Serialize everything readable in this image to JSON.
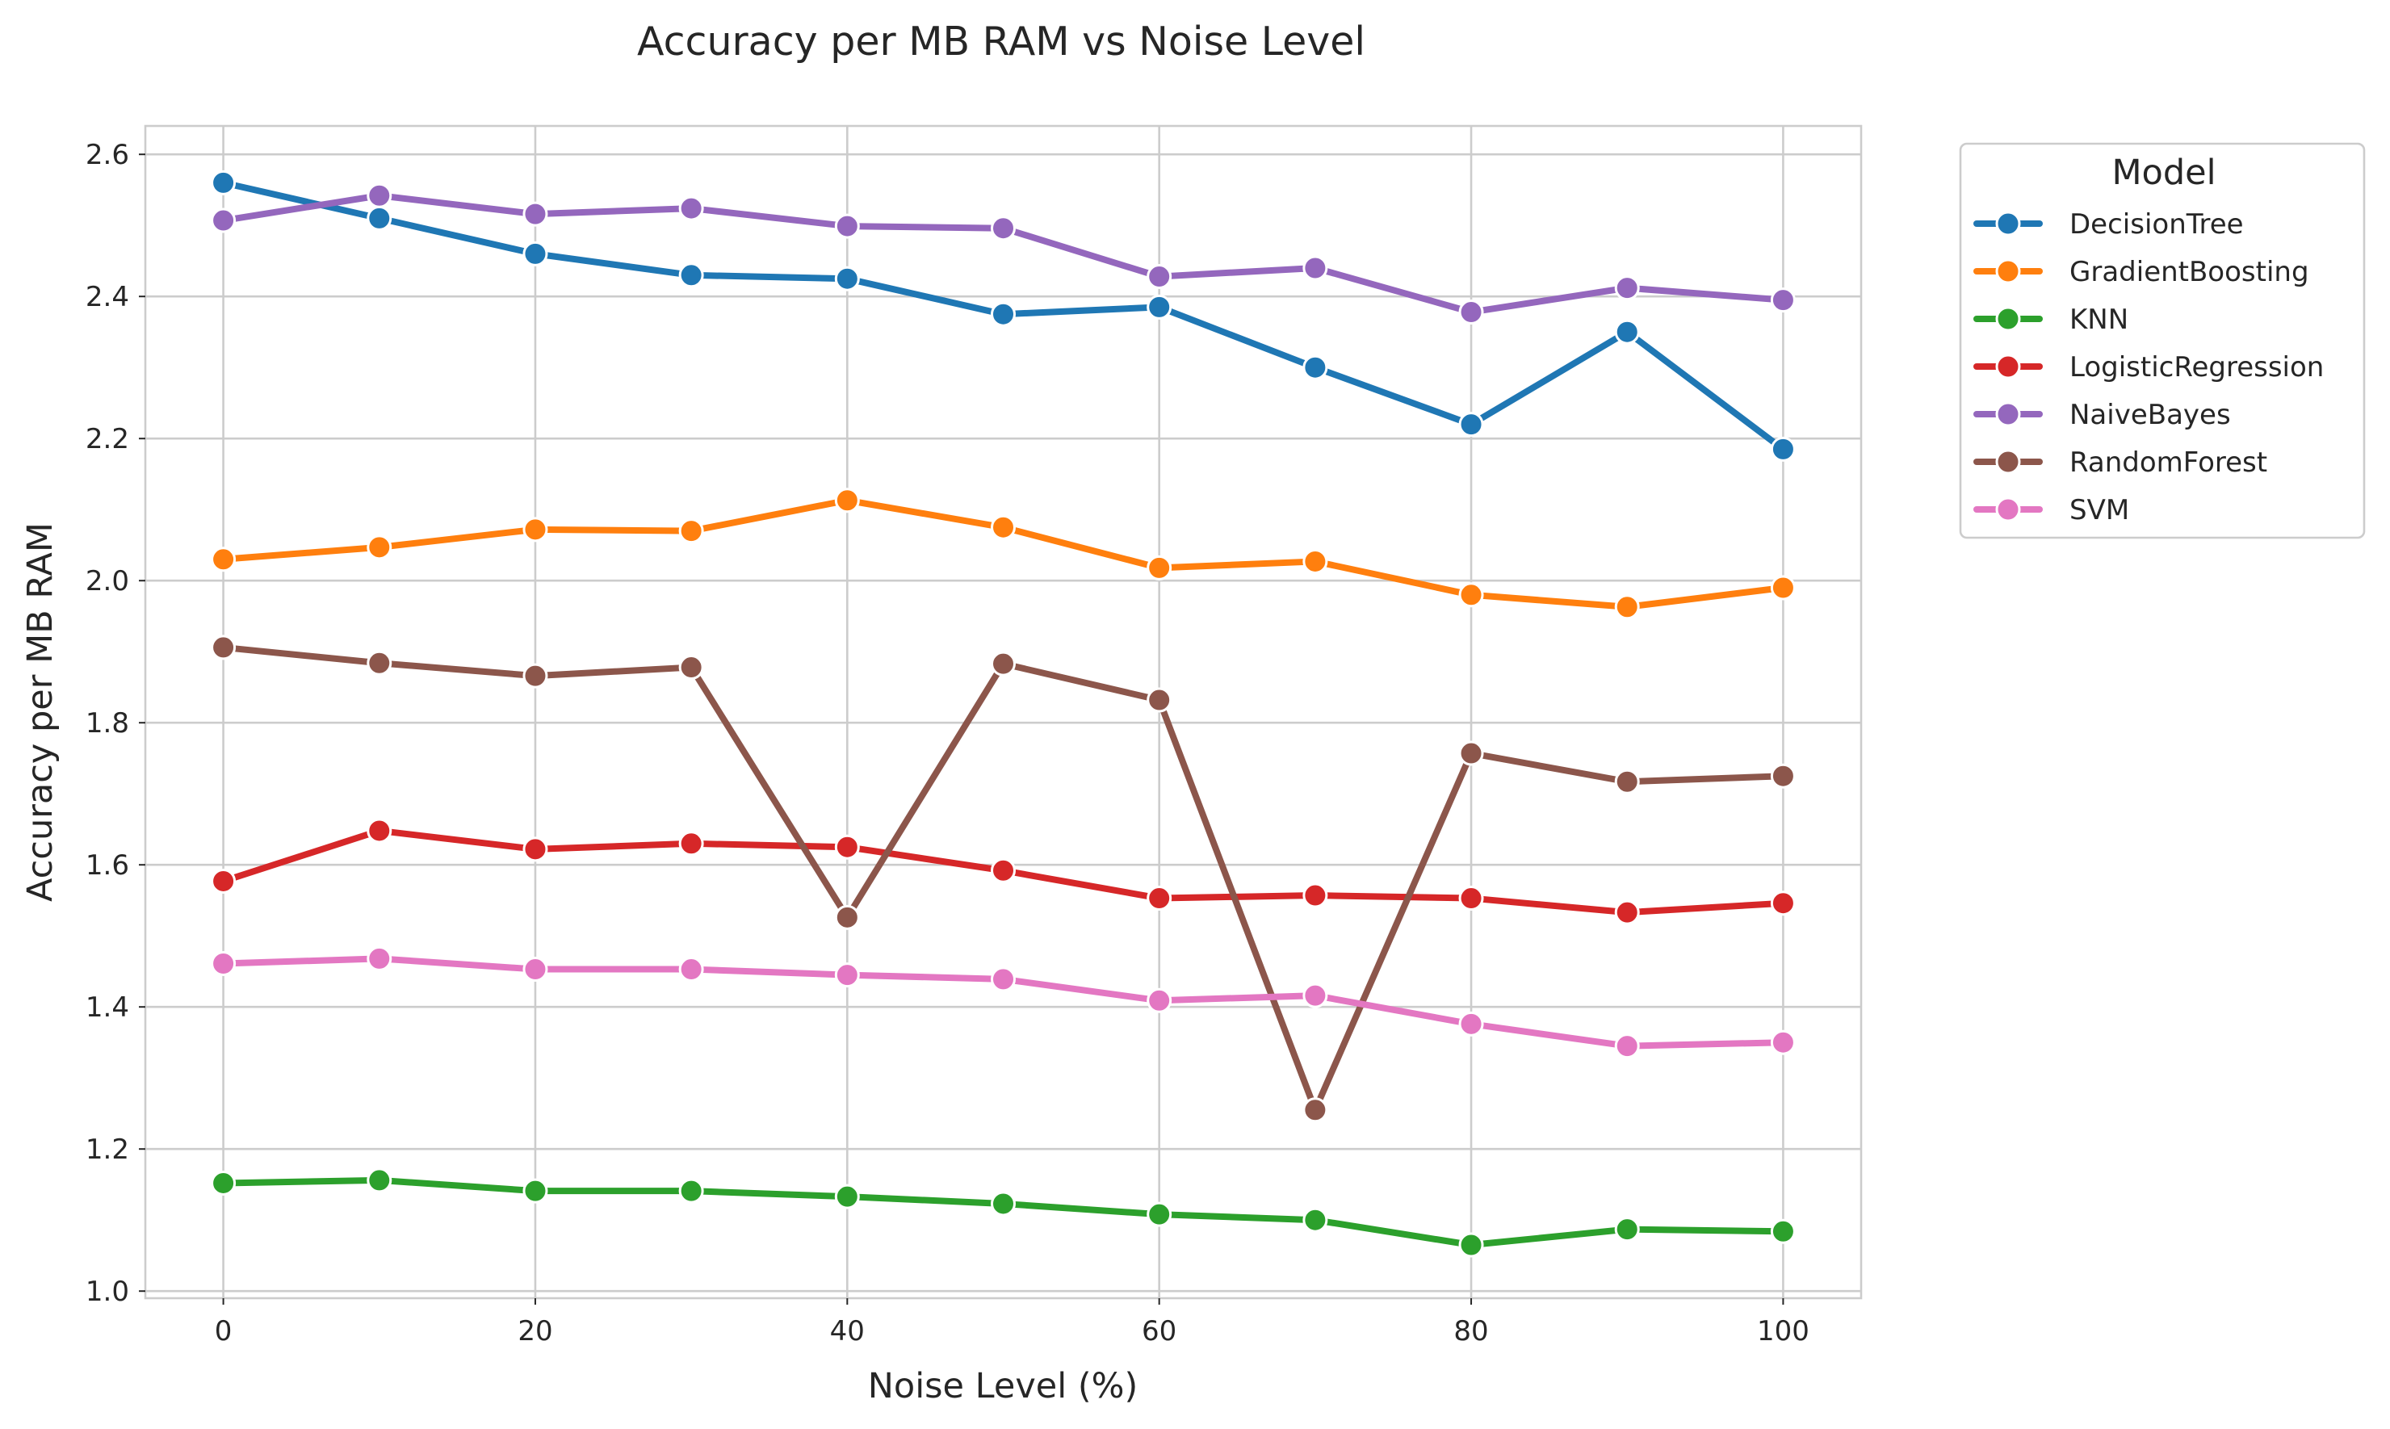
{
  "chart_data": {
    "type": "line",
    "title": "Accuracy per MB RAM vs Noise Level",
    "xlabel": "Noise Level (%)",
    "ylabel": "Accuracy per MB RAM",
    "x": [
      0,
      10,
      20,
      30,
      40,
      50,
      60,
      70,
      80,
      90,
      100
    ],
    "xticks": [
      "0",
      "20",
      "40",
      "60",
      "80",
      "100"
    ],
    "yticks": [
      "1.0",
      "1.2",
      "1.4",
      "1.6",
      "1.8",
      "2.0",
      "2.2",
      "2.4",
      "2.6"
    ],
    "xlim": [
      -5,
      105
    ],
    "ylim": [
      0.99,
      2.64
    ],
    "grid": true,
    "legend": {
      "title": "Model",
      "placement": "outside-right"
    },
    "series": [
      {
        "name": "DecisionTree",
        "color": "#1f77b4",
        "values": [
          2.56,
          2.51,
          2.46,
          2.43,
          2.425,
          2.375,
          2.385,
          2.3,
          2.22,
          2.35,
          2.185
        ]
      },
      {
        "name": "GradientBoosting",
        "color": "#ff7f0e",
        "values": [
          2.03,
          2.047,
          2.072,
          2.07,
          2.113,
          2.075,
          2.018,
          2.027,
          1.98,
          1.963,
          1.99
        ]
      },
      {
        "name": "KNN",
        "color": "#2ca02c",
        "values": [
          1.152,
          1.156,
          1.141,
          1.141,
          1.133,
          1.123,
          1.108,
          1.1,
          1.065,
          1.087,
          1.084
        ]
      },
      {
        "name": "LogisticRegression",
        "color": "#d62728",
        "values": [
          1.577,
          1.648,
          1.622,
          1.63,
          1.625,
          1.592,
          1.553,
          1.557,
          1.553,
          1.533,
          1.546
        ]
      },
      {
        "name": "NaiveBayes",
        "color": "#9467bd",
        "values": [
          2.507,
          2.542,
          2.516,
          2.524,
          2.499,
          2.496,
          2.428,
          2.44,
          2.378,
          2.412,
          2.395
        ]
      },
      {
        "name": "RandomForest",
        "color": "#8c564b",
        "values": [
          1.906,
          1.884,
          1.866,
          1.878,
          1.526,
          1.883,
          1.832,
          1.255,
          1.757,
          1.717,
          1.725
        ]
      },
      {
        "name": "SVM",
        "color": "#e377c2",
        "values": [
          1.461,
          1.468,
          1.453,
          1.453,
          1.445,
          1.439,
          1.409,
          1.416,
          1.376,
          1.345,
          1.35
        ]
      }
    ]
  }
}
